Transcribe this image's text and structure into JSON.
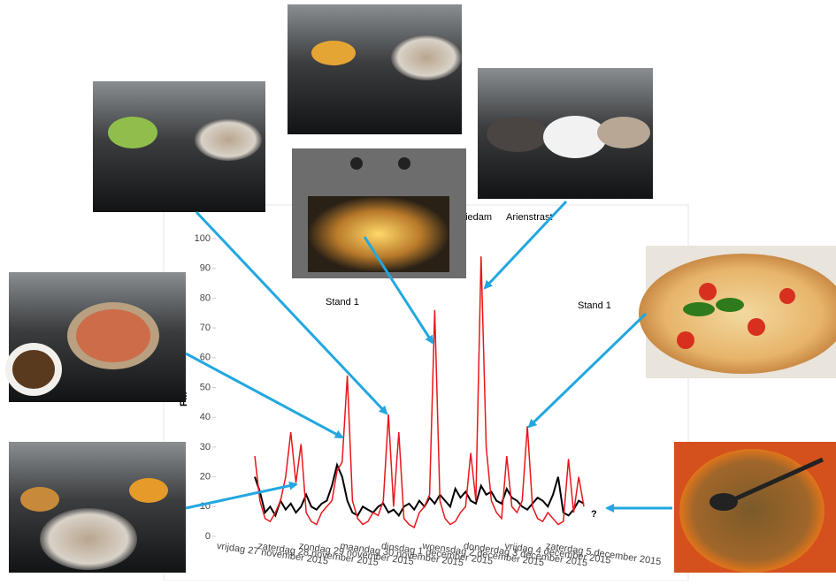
{
  "chart_data": {
    "type": "line",
    "y_label": "PM",
    "ylim": [
      0,
      100
    ],
    "yticks": [
      0,
      10,
      20,
      30,
      40,
      50,
      60,
      70,
      80,
      90,
      100
    ],
    "categories": [
      "vrijdag 27 november 2015",
      null,
      null,
      null,
      null,
      null,
      null,
      null,
      "zaterdag 28 november 2015",
      null,
      null,
      null,
      null,
      null,
      null,
      null,
      "zondag 29 november 2015",
      null,
      null,
      null,
      null,
      null,
      null,
      null,
      "maandag 30 november 2015",
      null,
      null,
      null,
      null,
      null,
      null,
      null,
      "dinsdag 1 december 2015",
      null,
      null,
      null,
      null,
      null,
      null,
      null,
      "woensdag 2 december 2015",
      null,
      null,
      null,
      null,
      null,
      null,
      null,
      "donderdag 3 december 2015",
      null,
      null,
      null,
      null,
      null,
      null,
      null,
      "vrijdag 4 december 2015",
      null,
      null,
      null,
      null,
      null,
      null,
      null,
      "zaterdag 5 december 2015"
    ],
    "series": [
      {
        "name": "hiedam",
        "color": "#000000",
        "values": [
          20,
          15,
          8,
          10,
          7,
          12,
          9,
          11,
          8,
          10,
          14,
          10,
          9,
          11,
          12,
          17,
          24,
          20,
          12,
          8,
          7,
          10,
          9,
          8,
          10,
          11,
          8,
          9,
          7,
          10,
          11,
          9,
          12,
          10,
          13,
          11,
          14,
          12,
          10,
          16,
          13,
          15,
          12,
          11,
          17,
          14,
          15,
          12,
          11,
          16,
          13,
          12,
          10,
          9,
          11,
          13,
          12,
          10,
          14,
          20,
          8,
          7,
          9,
          12,
          11
        ]
      },
      {
        "name": "Arienstrast",
        "color": "#e8161b",
        "values": [
          27,
          12,
          6,
          5,
          8,
          12,
          20,
          35,
          18,
          31,
          8,
          5,
          4,
          8,
          10,
          12,
          22,
          25,
          54,
          12,
          6,
          4,
          5,
          8,
          7,
          12,
          41,
          10,
          35,
          6,
          4,
          3,
          8,
          10,
          14,
          76,
          12,
          6,
          4,
          5,
          8,
          10,
          28,
          12,
          94,
          30,
          12,
          8,
          6,
          27,
          10,
          8,
          12,
          37,
          10,
          6,
          5,
          8,
          6,
          4,
          5,
          26,
          8,
          20,
          10
        ]
      }
    ],
    "annotations": [
      "Stand 1",
      "Stand 1",
      "?"
    ]
  }
}
